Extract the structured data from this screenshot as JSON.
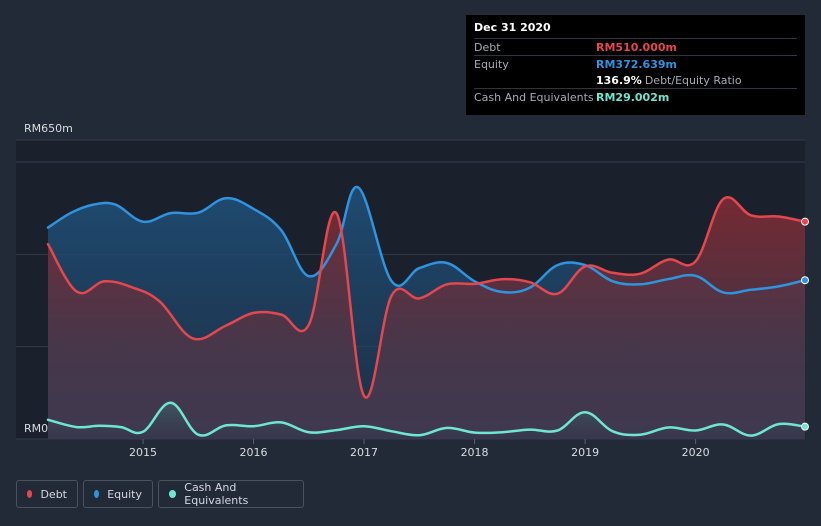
{
  "tooltip": {
    "date": "Dec 31 2020",
    "debt_label": "Debt",
    "debt_value": "RM510.000m",
    "equity_label": "Equity",
    "equity_value": "RM372.639m",
    "ratio_value": "136.9%",
    "ratio_label": "Debt/Equity Ratio",
    "cash_label": "Cash And Equivalents",
    "cash_value": "RM29.002m"
  },
  "legend": {
    "debt": "Debt",
    "equity": "Equity",
    "cash": "Cash And Equivalents"
  },
  "colors": {
    "debt": "#e4474e",
    "equity": "#2f93e0",
    "cash": "#6fe6d2",
    "background": "#232a37"
  },
  "chart_data": {
    "type": "area",
    "title": "",
    "ylabel": "",
    "y_top_label": "RM650m",
    "y_bottom_label": "RM0",
    "ylim": [
      0,
      650
    ],
    "xlim": [
      2014.14,
      2020.99
    ],
    "x_ticks": [
      {
        "label": "2015",
        "value": 2015
      },
      {
        "label": "2016",
        "value": 2016
      },
      {
        "label": "2017",
        "value": 2017
      },
      {
        "label": "2018",
        "value": 2018
      },
      {
        "label": "2019",
        "value": 2019
      },
      {
        "label": "2020",
        "value": 2020
      }
    ],
    "series": [
      {
        "name": "Debt",
        "x": [
          2014.14,
          2014.4,
          2014.65,
          2014.9,
          2015.15,
          2015.45,
          2015.75,
          2016.0,
          2016.25,
          2016.5,
          2016.75,
          2017.0,
          2017.25,
          2017.5,
          2017.75,
          2018.0,
          2018.25,
          2018.5,
          2018.75,
          2019.0,
          2019.25,
          2019.5,
          2019.75,
          2020.0,
          2020.25,
          2020.5,
          2020.75,
          2020.99
        ],
        "values": [
          457,
          346,
          370,
          356,
          323,
          236,
          266,
          296,
          292,
          268,
          530,
          101,
          337,
          330,
          363,
          364,
          375,
          368,
          341,
          405,
          390,
          388,
          421,
          417,
          563,
          525,
          522,
          510
        ]
      },
      {
        "name": "Equity",
        "x": [
          2014.14,
          2014.35,
          2014.55,
          2014.75,
          2015.0,
          2015.25,
          2015.5,
          2015.75,
          2016.0,
          2016.25,
          2016.5,
          2016.75,
          2016.95,
          2017.25,
          2017.5,
          2017.75,
          2018.0,
          2018.25,
          2018.5,
          2018.75,
          2019.0,
          2019.25,
          2019.5,
          2019.75,
          2020.0,
          2020.25,
          2020.5,
          2020.75,
          2020.99
        ],
        "values": [
          496,
          531,
          550,
          550,
          510,
          530,
          531,
          565,
          540,
          490,
          382,
          457,
          590,
          370,
          401,
          413,
          370,
          345,
          355,
          408,
          408,
          370,
          363,
          375,
          383,
          344,
          350,
          358,
          372.6
        ]
      },
      {
        "name": "Cash And Equivalents",
        "x": [
          2014.14,
          2014.4,
          2014.6,
          2014.8,
          2015.0,
          2015.25,
          2015.5,
          2015.75,
          2016.0,
          2016.25,
          2016.5,
          2016.75,
          2017.0,
          2017.25,
          2017.5,
          2017.75,
          2018.0,
          2018.25,
          2018.5,
          2018.75,
          2019.0,
          2019.25,
          2019.5,
          2019.75,
          2020.0,
          2020.25,
          2020.5,
          2020.75,
          2020.99
        ],
        "values": [
          45,
          28,
          31,
          28,
          17,
          85,
          10,
          32,
          30,
          39,
          16,
          21,
          30,
          18,
          9,
          26,
          15,
          16,
          22,
          20,
          63,
          18,
          10,
          27,
          20,
          34,
          8,
          35,
          29
        ]
      }
    ]
  }
}
